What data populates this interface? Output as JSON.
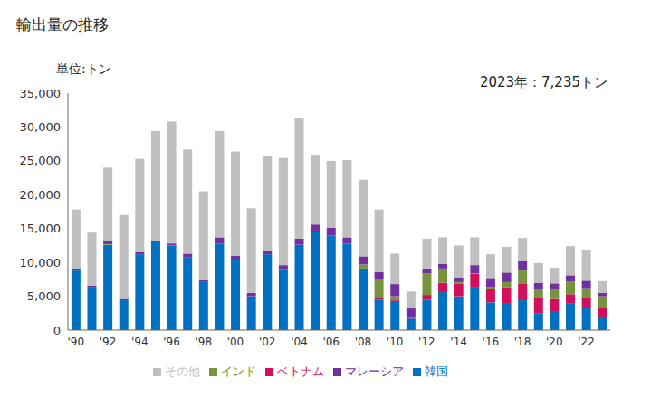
{
  "chart_data": {
    "type": "bar",
    "title": "輸出量の推移",
    "y_label": "単位:トン",
    "annotation": "2023年：7,235トン",
    "stacked": true,
    "grid": false,
    "legend": "bottom",
    "categories": [
      "'90",
      null,
      "'92",
      null,
      "'94",
      null,
      "'96",
      null,
      "'98",
      null,
      "'00",
      null,
      "'02",
      null,
      "'04",
      null,
      "'06",
      null,
      "'08",
      null,
      "'10",
      null,
      "'12",
      null,
      "'14",
      null,
      "'16",
      null,
      "'18",
      null,
      "'20",
      null,
      "'22",
      null
    ],
    "series": [
      {
        "name": "韓国",
        "color": "#0070c0",
        "values": [
          8800,
          6400,
          12600,
          4400,
          11200,
          13200,
          12500,
          10800,
          7100,
          12800,
          10300,
          5000,
          11200,
          9000,
          12600,
          14500,
          14000,
          12800,
          9100,
          4500,
          4300,
          1700,
          4500,
          5600,
          5000,
          6400,
          4100,
          4000,
          4400,
          2500,
          2800,
          3900,
          3200,
          2000
        ]
      },
      {
        "name": "ベトナム",
        "color": "#d0105a",
        "values": [
          0,
          0,
          0,
          0,
          0,
          0,
          0,
          0,
          0,
          0,
          0,
          0,
          0,
          0,
          0,
          0,
          0,
          0,
          0,
          300,
          200,
          100,
          700,
          1400,
          1900,
          1900,
          2000,
          2300,
          2500,
          2400,
          1800,
          1400,
          1500,
          1300
        ]
      },
      {
        "name": "インド",
        "color": "#77933c",
        "values": [
          0,
          0,
          100,
          0,
          0,
          0,
          0,
          0,
          0,
          0,
          0,
          0,
          0,
          0,
          0,
          0,
          0,
          0,
          600,
          2600,
          500,
          0,
          3200,
          2100,
          200,
          100,
          300,
          800,
          1900,
          1100,
          1500,
          1900,
          1500,
          1700
        ]
      },
      {
        "name": "マレーシア",
        "color": "#7030a0",
        "values": [
          300,
          200,
          400,
          200,
          300,
          0,
          300,
          500,
          300,
          900,
          700,
          500,
          600,
          600,
          900,
          1100,
          1100,
          900,
          1200,
          1200,
          1800,
          1400,
          700,
          700,
          700,
          1200,
          1300,
          1400,
          1400,
          1000,
          800,
          900,
          1100,
          500
        ]
      },
      {
        "name": "その他",
        "color": "#bfbfbf",
        "values": [
          8700,
          7800,
          10900,
          12400,
          13800,
          16200,
          18000,
          15400,
          13100,
          15700,
          15400,
          12500,
          13900,
          15800,
          17900,
          10300,
          9900,
          11400,
          11300,
          9200,
          4500,
          2500,
          4400,
          3900,
          4700,
          4100,
          3500,
          3800,
          3400,
          2900,
          2300,
          4300,
          4600,
          1735
        ]
      }
    ],
    "ylim": [
      0,
      35000
    ],
    "yticks": [
      0,
      {
        "value": 5000,
        "label": "5,000"
      },
      {
        "value": 10000,
        "label": "10,000"
      },
      {
        "value": 15000,
        "label": "15,000"
      },
      {
        "value": 20000,
        "label": "20,000"
      },
      {
        "value": 25000,
        "label": "25,000"
      },
      {
        "value": 30000,
        "label": "30,000"
      },
      {
        "value": 35000,
        "label": "35,000"
      }
    ]
  }
}
